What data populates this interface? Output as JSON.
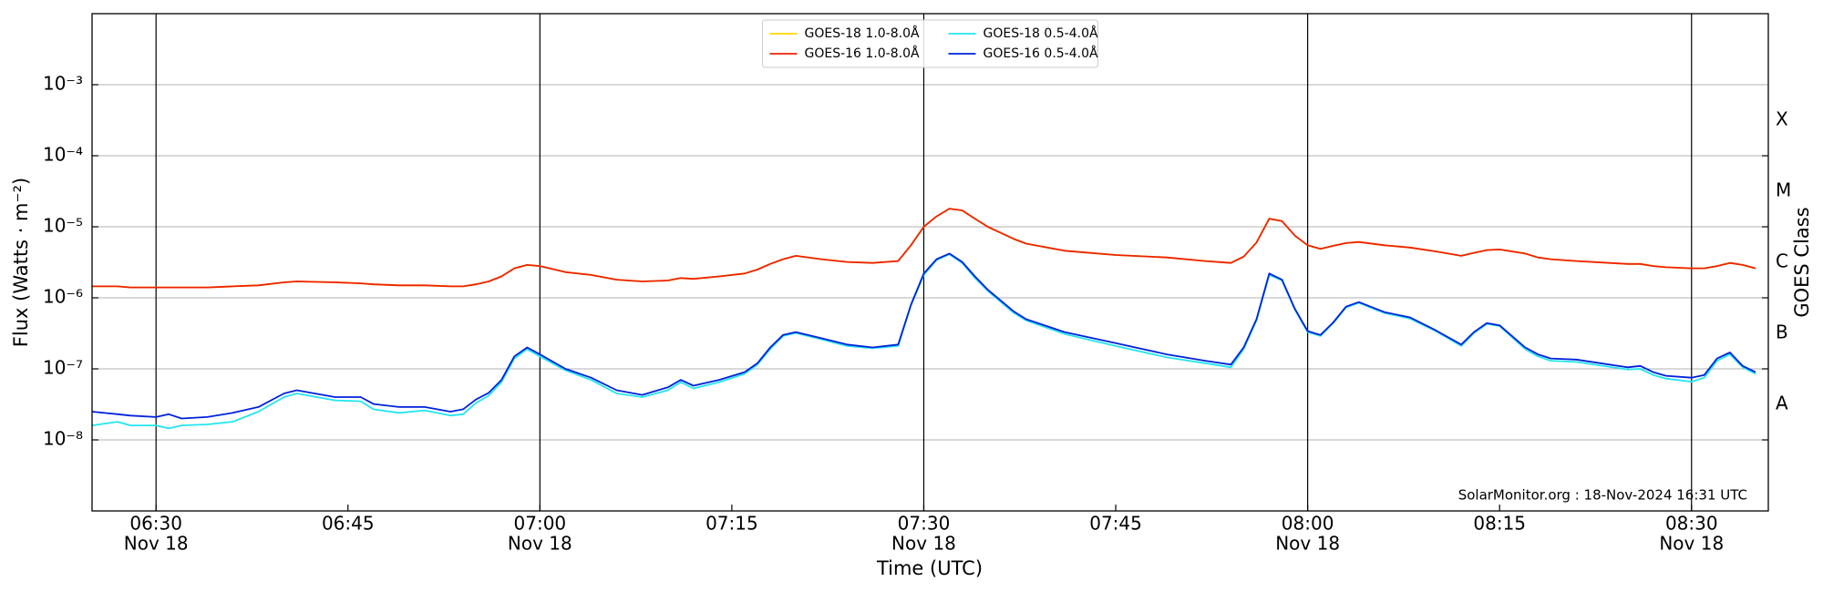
{
  "chart_data": {
    "type": "line",
    "log_y": true,
    "grid": true,
    "legend_loc": "upper center",
    "ylabel": "Flux (Watts · m⁻²)",
    "xlabel": "Time (UTC)",
    "y2label": "GOES Class",
    "annotation": "SolarMonitor.org : 18-Nov-2024 16:31 UTC",
    "xlim": [
      "06:25",
      "08:36"
    ],
    "xticks": [
      {
        "value": "06:30",
        "label": "06:30",
        "date": "Nov 18"
      },
      {
        "value": "06:45",
        "label": "06:45"
      },
      {
        "value": "07:00",
        "label": "07:00",
        "date": "Nov 18"
      },
      {
        "value": "07:15",
        "label": "07:15"
      },
      {
        "value": "07:30",
        "label": "07:30",
        "date": "Nov 18"
      },
      {
        "value": "07:45",
        "label": "07:45"
      },
      {
        "value": "08:00",
        "label": "08:00",
        "date": "Nov 18"
      },
      {
        "value": "08:15",
        "label": "08:15"
      },
      {
        "value": "08:30",
        "label": "08:30",
        "date": "Nov 18"
      }
    ],
    "ylim": [
      1e-09,
      0.01
    ],
    "yticks": [
      {
        "value": 1e-08,
        "label": "10⁻⁸"
      },
      {
        "value": 1e-07,
        "label": "10⁻⁷"
      },
      {
        "value": 1e-06,
        "label": "10⁻⁶"
      },
      {
        "value": 1e-05,
        "label": "10⁻⁵"
      },
      {
        "value": 0.0001,
        "label": "10⁻⁴"
      },
      {
        "value": 0.001,
        "label": "10⁻³"
      }
    ],
    "y2lim": [
      1e-09,
      0.01
    ],
    "y2ticks": [
      {
        "value": 1e-08,
        "label": "A"
      },
      {
        "value": 1e-07,
        "label": "B"
      },
      {
        "value": 1e-06,
        "label": "C"
      },
      {
        "value": 1e-05,
        "label": "M"
      },
      {
        "value": 0.0001,
        "label": "X"
      }
    ],
    "x": [
      "06:25",
      "06:27",
      "06:28",
      "06:30",
      "06:31",
      "06:32",
      "06:34",
      "06:36",
      "06:38",
      "06:40",
      "06:41",
      "06:44",
      "06:46",
      "06:47",
      "06:49",
      "06:51",
      "06:53",
      "06:54",
      "06:55",
      "06:56",
      "06:57",
      "06:58",
      "06:59",
      "07:00",
      "07:02",
      "07:04",
      "07:06",
      "07:08",
      "07:10",
      "07:11",
      "07:12",
      "07:14",
      "07:16",
      "07:17",
      "07:18",
      "07:19",
      "07:20",
      "07:22",
      "07:24",
      "07:26",
      "07:28",
      "07:29",
      "07:30",
      "07:31",
      "07:32",
      "07:33",
      "07:34",
      "07:35",
      "07:37",
      "07:38",
      "07:41",
      "07:45",
      "07:49",
      "07:52",
      "07:54",
      "07:55",
      "07:56",
      "07:57",
      "07:58",
      "07:59",
      "08:00",
      "08:01",
      "08:02",
      "08:03",
      "08:04",
      "08:06",
      "08:08",
      "08:10",
      "08:12",
      "08:13",
      "08:14",
      "08:15",
      "08:17",
      "08:18",
      "08:19",
      "08:21",
      "08:25",
      "08:26",
      "08:27",
      "08:28",
      "08:30",
      "08:31",
      "08:32",
      "08:33",
      "08:34",
      "08:35"
    ],
    "series": [
      {
        "name": "GOES-18 1.0-8.0Å",
        "color": "#ffd700",
        "values": [
          1.45e-06,
          1.45e-06,
          1.4e-06,
          1.4e-06,
          1.4e-06,
          1.4e-06,
          1.4e-06,
          1.45e-06,
          1.5e-06,
          1.65e-06,
          1.7e-06,
          1.65e-06,
          1.6e-06,
          1.55e-06,
          1.5e-06,
          1.5e-06,
          1.45e-06,
          1.45e-06,
          1.55e-06,
          1.7e-06,
          2e-06,
          2.6e-06,
          2.9e-06,
          2.8e-06,
          2.3e-06,
          2.1e-06,
          1.8e-06,
          1.7e-06,
          1.75e-06,
          1.9e-06,
          1.85e-06,
          2e-06,
          2.2e-06,
          2.5e-06,
          3e-06,
          3.5e-06,
          3.9e-06,
          3.5e-06,
          3.2e-06,
          3.1e-06,
          3.3e-06,
          5.5e-06,
          1e-05,
          1.4e-05,
          1.8e-05,
          1.7e-05,
          1.3e-05,
          1e-05,
          6.8e-06,
          5.8e-06,
          4.6e-06,
          4e-06,
          3.7e-06,
          3.3e-06,
          3.1e-06,
          3.8e-06,
          6e-06,
          1.3e-05,
          1.2e-05,
          7.5e-06,
          5.5e-06,
          4.9e-06,
          5.4e-06,
          5.9e-06,
          6.1e-06,
          5.5e-06,
          5.1e-06,
          4.5e-06,
          3.9e-06,
          4.3e-06,
          4.7e-06,
          4.8e-06,
          4.2e-06,
          3.7e-06,
          3.5e-06,
          3.3e-06,
          3e-06,
          3e-06,
          2.8e-06,
          2.7e-06,
          2.6e-06,
          2.6e-06,
          2.8e-06,
          3.1e-06,
          2.9e-06,
          2.6e-06
        ]
      },
      {
        "name": "GOES-16 1.0-8.0Å",
        "color": "#ee2200",
        "values": [
          1.45e-06,
          1.45e-06,
          1.4e-06,
          1.4e-06,
          1.4e-06,
          1.4e-06,
          1.4e-06,
          1.45e-06,
          1.5e-06,
          1.65e-06,
          1.7e-06,
          1.65e-06,
          1.6e-06,
          1.55e-06,
          1.5e-06,
          1.5e-06,
          1.45e-06,
          1.45e-06,
          1.55e-06,
          1.7e-06,
          2e-06,
          2.6e-06,
          2.9e-06,
          2.8e-06,
          2.3e-06,
          2.1e-06,
          1.8e-06,
          1.7e-06,
          1.75e-06,
          1.9e-06,
          1.85e-06,
          2e-06,
          2.2e-06,
          2.5e-06,
          3e-06,
          3.5e-06,
          3.9e-06,
          3.5e-06,
          3.2e-06,
          3.1e-06,
          3.3e-06,
          5.5e-06,
          1e-05,
          1.4e-05,
          1.8e-05,
          1.7e-05,
          1.3e-05,
          1e-05,
          6.8e-06,
          5.8e-06,
          4.6e-06,
          4e-06,
          3.7e-06,
          3.3e-06,
          3.1e-06,
          3.8e-06,
          6e-06,
          1.3e-05,
          1.2e-05,
          7.5e-06,
          5.5e-06,
          4.9e-06,
          5.4e-06,
          5.9e-06,
          6.1e-06,
          5.5e-06,
          5.1e-06,
          4.5e-06,
          3.9e-06,
          4.3e-06,
          4.7e-06,
          4.8e-06,
          4.2e-06,
          3.7e-06,
          3.5e-06,
          3.3e-06,
          3e-06,
          3e-06,
          2.8e-06,
          2.7e-06,
          2.6e-06,
          2.6e-06,
          2.8e-06,
          3.1e-06,
          2.9e-06,
          2.6e-06
        ]
      },
      {
        "name": "GOES-18 0.5-4.0Å",
        "color": "#22e5f0",
        "values": [
          1.6e-08,
          1.8e-08,
          1.6e-08,
          1.6e-08,
          1.45e-08,
          1.6e-08,
          1.65e-08,
          1.8e-08,
          2.5e-08,
          4e-08,
          4.5e-08,
          3.6e-08,
          3.5e-08,
          2.7e-08,
          2.4e-08,
          2.6e-08,
          2.2e-08,
          2.3e-08,
          3.3e-08,
          4.2e-08,
          6.5e-08,
          1.4e-07,
          1.9e-07,
          1.5e-07,
          9.5e-08,
          7e-08,
          4.5e-08,
          4e-08,
          5e-08,
          6.5e-08,
          5.3e-08,
          6.5e-08,
          8.5e-08,
          1.15e-07,
          1.9e-07,
          2.9e-07,
          3.2e-07,
          2.6e-07,
          2.1e-07,
          1.95e-07,
          2.1e-07,
          7.8e-07,
          2.1e-06,
          3.4e-06,
          4.1e-06,
          3.1e-06,
          1.9e-06,
          1.25e-06,
          6.2e-07,
          4.8e-07,
          3.1e-07,
          2.1e-07,
          1.45e-07,
          1.2e-07,
          1.05e-07,
          1.9e-07,
          4.8e-07,
          2.1e-06,
          1.75e-06,
          6.8e-07,
          3.3e-07,
          2.9e-07,
          4.4e-07,
          7.3e-07,
          8.5e-07,
          6.1e-07,
          5.1e-07,
          3.4e-07,
          2.1e-07,
          3.2e-07,
          4.3e-07,
          4e-07,
          1.9e-07,
          1.5e-07,
          1.3e-07,
          1.25e-07,
          9.8e-08,
          1e-07,
          8.2e-08,
          7.3e-08,
          6.6e-08,
          7.5e-08,
          1.3e-07,
          1.6e-07,
          1.05e-07,
          8.5e-08
        ]
      },
      {
        "name": "GOES-16 0.5-4.0Å",
        "color": "#0022dd",
        "values": [
          2.5e-08,
          2.3e-08,
          2.2e-08,
          2.1e-08,
          2.3e-08,
          2e-08,
          2.1e-08,
          2.4e-08,
          2.9e-08,
          4.5e-08,
          5e-08,
          4e-08,
          4e-08,
          3.2e-08,
          2.9e-08,
          2.9e-08,
          2.5e-08,
          2.7e-08,
          3.7e-08,
          4.6e-08,
          7e-08,
          1.5e-07,
          2e-07,
          1.6e-07,
          1e-07,
          7.5e-08,
          5e-08,
          4.3e-08,
          5.5e-08,
          7e-08,
          5.8e-08,
          7e-08,
          9e-08,
          1.2e-07,
          2e-07,
          3e-07,
          3.3e-07,
          2.7e-07,
          2.2e-07,
          2e-07,
          2.2e-07,
          8e-07,
          2.2e-06,
          3.5e-06,
          4.2e-06,
          3.2e-06,
          2e-06,
          1.3e-06,
          6.5e-07,
          5e-07,
          3.3e-07,
          2.3e-07,
          1.6e-07,
          1.3e-07,
          1.15e-07,
          2e-07,
          5e-07,
          2.2e-06,
          1.8e-06,
          7e-07,
          3.4e-07,
          3e-07,
          4.5e-07,
          7.5e-07,
          8.7e-07,
          6.3e-07,
          5.3e-07,
          3.5e-07,
          2.2e-07,
          3.3e-07,
          4.4e-07,
          4.1e-07,
          2e-07,
          1.6e-07,
          1.4e-07,
          1.35e-07,
          1.05e-07,
          1.1e-07,
          9e-08,
          8e-08,
          7.5e-08,
          8.2e-08,
          1.4e-07,
          1.7e-07,
          1.1e-07,
          9e-08
        ]
      }
    ]
  }
}
